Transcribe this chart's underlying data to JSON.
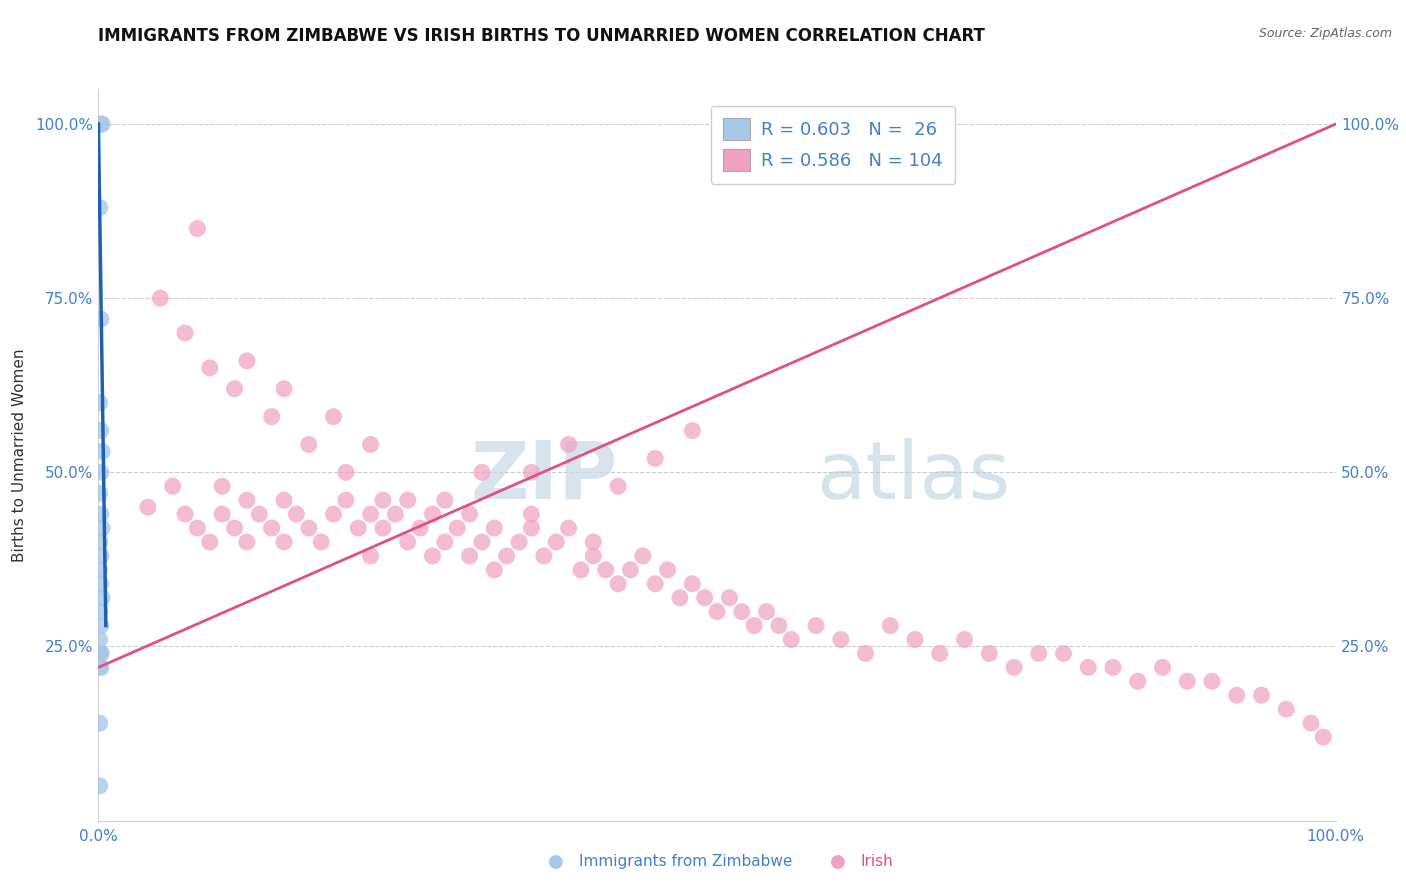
{
  "title": "IMMIGRANTS FROM ZIMBABWE VS IRISH BIRTHS TO UNMARRIED WOMEN CORRELATION CHART",
  "source": "Source: ZipAtlas.com",
  "ylabel": "Births to Unmarried Women",
  "legend_label1": "Immigrants from Zimbabwe",
  "legend_label2": "Irish",
  "r1": 0.603,
  "n1": 26,
  "r2": 0.586,
  "n2": 104,
  "blue_color": "#A8C8E8",
  "pink_color": "#F0A0C0",
  "blue_line_color": "#2060B0",
  "pink_line_color": "#E05080",
  "title_fontsize": 12,
  "axis_label_fontsize": 11,
  "tick_fontsize": 11,
  "tick_color": "#4080D0",
  "watermark_zip": "ZIP",
  "watermark_atlas": "atlas",
  "xlim": [
    0.0,
    1.0
  ],
  "ylim": [
    0.0,
    1.05
  ],
  "grid_color": "#CCCCCC",
  "bg_color": "#FFFFFF",
  "blue_x": [
    0.002,
    0.003,
    0.001,
    0.002,
    0.001,
    0.002,
    0.003,
    0.002,
    0.001,
    0.002,
    0.003,
    0.001,
    0.002,
    0.001,
    0.002,
    0.003,
    0.001,
    0.002,
    0.001,
    0.002,
    0.001,
    0.002,
    0.001,
    0.002,
    0.001,
    0.001
  ],
  "blue_y": [
    1.0,
    1.0,
    0.88,
    0.72,
    0.6,
    0.56,
    0.53,
    0.5,
    0.47,
    0.44,
    0.42,
    0.4,
    0.38,
    0.36,
    0.34,
    0.32,
    0.3,
    0.28,
    0.26,
    0.24,
    0.22,
    0.22,
    0.24,
    0.24,
    0.14,
    0.05
  ],
  "pink_x": [
    0.04,
    0.06,
    0.07,
    0.08,
    0.09,
    0.1,
    0.1,
    0.11,
    0.12,
    0.12,
    0.13,
    0.14,
    0.15,
    0.15,
    0.16,
    0.17,
    0.18,
    0.19,
    0.2,
    0.21,
    0.22,
    0.22,
    0.23,
    0.24,
    0.25,
    0.25,
    0.26,
    0.27,
    0.27,
    0.28,
    0.29,
    0.3,
    0.3,
    0.31,
    0.32,
    0.32,
    0.33,
    0.34,
    0.35,
    0.35,
    0.36,
    0.37,
    0.38,
    0.39,
    0.4,
    0.4,
    0.41,
    0.42,
    0.43,
    0.44,
    0.45,
    0.46,
    0.47,
    0.48,
    0.49,
    0.5,
    0.51,
    0.52,
    0.53,
    0.54,
    0.55,
    0.56,
    0.58,
    0.6,
    0.62,
    0.64,
    0.66,
    0.68,
    0.7,
    0.72,
    0.74,
    0.76,
    0.78,
    0.8,
    0.82,
    0.84,
    0.86,
    0.88,
    0.9,
    0.92,
    0.94,
    0.96,
    0.98,
    0.99,
    0.42,
    0.45,
    0.48,
    0.35,
    0.38,
    0.28,
    0.31,
    0.22,
    0.19,
    0.15,
    0.12,
    0.09,
    0.07,
    0.05,
    0.08,
    0.11,
    0.14,
    0.17,
    0.2,
    0.23
  ],
  "pink_y": [
    0.45,
    0.48,
    0.44,
    0.42,
    0.4,
    0.48,
    0.44,
    0.42,
    0.46,
    0.4,
    0.44,
    0.42,
    0.46,
    0.4,
    0.44,
    0.42,
    0.4,
    0.44,
    0.46,
    0.42,
    0.44,
    0.38,
    0.42,
    0.44,
    0.46,
    0.4,
    0.42,
    0.44,
    0.38,
    0.4,
    0.42,
    0.44,
    0.38,
    0.4,
    0.42,
    0.36,
    0.38,
    0.4,
    0.42,
    0.44,
    0.38,
    0.4,
    0.42,
    0.36,
    0.38,
    0.4,
    0.36,
    0.34,
    0.36,
    0.38,
    0.34,
    0.36,
    0.32,
    0.34,
    0.32,
    0.3,
    0.32,
    0.3,
    0.28,
    0.3,
    0.28,
    0.26,
    0.28,
    0.26,
    0.24,
    0.28,
    0.26,
    0.24,
    0.26,
    0.24,
    0.22,
    0.24,
    0.24,
    0.22,
    0.22,
    0.2,
    0.22,
    0.2,
    0.2,
    0.18,
    0.18,
    0.16,
    0.14,
    0.12,
    0.48,
    0.52,
    0.56,
    0.5,
    0.54,
    0.46,
    0.5,
    0.54,
    0.58,
    0.62,
    0.66,
    0.65,
    0.7,
    0.75,
    0.85,
    0.62,
    0.58,
    0.54,
    0.5,
    0.46
  ],
  "pink_line_start_x": 0.0,
  "pink_line_start_y": 0.22,
  "pink_line_end_x": 1.0,
  "pink_line_end_y": 1.0,
  "blue_line_start_x": 0.0,
  "blue_line_start_y": 1.0,
  "blue_line_end_x": 0.006,
  "blue_line_end_y": 0.28
}
